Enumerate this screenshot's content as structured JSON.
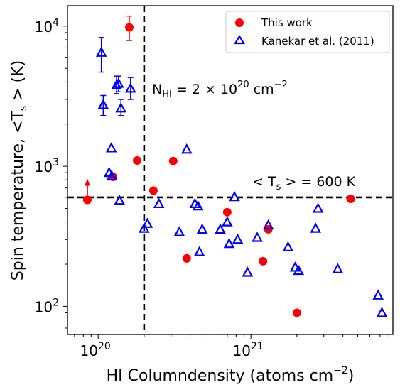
{
  "chart_data": {
    "type": "scatter",
    "xscale": "log",
    "yscale": "log",
    "xlim": [
      6.3e+19,
      8.5e+21
    ],
    "ylim": [
      63,
      14000
    ],
    "xticks": [
      {
        "value": 1e+20,
        "base": "10",
        "exp": "20"
      },
      {
        "value": 1e+21,
        "base": "10",
        "exp": "21"
      }
    ],
    "yticks": [
      {
        "value": 100,
        "base": "10",
        "exp": "2"
      },
      {
        "value": 1000,
        "base": "10",
        "exp": "3"
      },
      {
        "value": 10000,
        "base": "10",
        "exp": "4"
      }
    ],
    "xlabel": {
      "main": "HI Columndensity (atoms cm",
      "sup": "−2",
      "close": ")"
    },
    "ylabel": {
      "pre": "Spin temperature,  <T",
      "sub": "s",
      "post": " > (K)"
    },
    "colors": {
      "this_work": "#ff0000",
      "kanekar": "#0000ff"
    },
    "legend": {
      "position": "top-right",
      "entries": [
        "This work",
        "Kanekar et al. (2011)"
      ]
    },
    "vline": {
      "x": 2e+20
    },
    "hline": {
      "y": 600
    },
    "annotations": {
      "nhi": {
        "pre": "N",
        "sub": "HI",
        "mid": " = 2 × 10",
        "sup": "20",
        "post": " cm",
        "sup2": "−2"
      },
      "ts": {
        "pre": "< T",
        "sub": "s",
        "post": " > = 600 K"
      }
    },
    "series": [
      {
        "name": "This work",
        "marker": "circle",
        "points": [
          {
            "x": 1.6e+20,
            "y": 9800,
            "err": [
              7900,
              11800
            ]
          },
          {
            "x": 1.8e+20,
            "y": 1100
          },
          {
            "x": 1.25e+20,
            "y": 840
          },
          {
            "x": 3.1e+20,
            "y": 1090
          },
          {
            "x": 2.3e+20,
            "y": 670
          },
          {
            "x": 8.5e+19,
            "y": 575,
            "lower_limit": true
          },
          {
            "x": 7e+20,
            "y": 470
          },
          {
            "x": 1.3e+21,
            "y": 355
          },
          {
            "x": 3.8e+20,
            "y": 220
          },
          {
            "x": 1.2e+21,
            "y": 210
          },
          {
            "x": 2e+21,
            "y": 90
          },
          {
            "x": 4.5e+21,
            "y": 585
          }
        ]
      },
      {
        "name": "Kanekar et al. (2011)",
        "marker": "triangle",
        "points": [
          {
            "x": 1.05e+20,
            "y": 6500,
            "err": [
              4700,
              8300
            ]
          },
          {
            "x": 1.08e+20,
            "y": 2750,
            "err": [
              2300,
              3200
            ]
          },
          {
            "x": 1.32e+20,
            "y": 3800,
            "err": [
              3300,
              4400
            ]
          },
          {
            "x": 1.36e+20,
            "y": 3900,
            "err": [
              3400,
              4400
            ]
          },
          {
            "x": 1.41e+20,
            "y": 2600,
            "err": [
              2300,
              3000
            ]
          },
          {
            "x": 1.63e+20,
            "y": 3600,
            "err": [
              3000,
              4300
            ]
          },
          {
            "x": 1.22e+20,
            "y": 1350
          },
          {
            "x": 1.18e+20,
            "y": 900
          },
          {
            "x": 1.23e+20,
            "y": 850
          },
          {
            "x": 1.38e+20,
            "y": 570
          },
          {
            "x": 2e+20,
            "y": 360
          },
          {
            "x": 2.1e+20,
            "y": 390
          },
          {
            "x": 2.5e+20,
            "y": 540
          },
          {
            "x": 3.4e+20,
            "y": 340
          },
          {
            "x": 3.8e+20,
            "y": 1320
          },
          {
            "x": 4.3e+20,
            "y": 540
          },
          {
            "x": 4.5e+20,
            "y": 520
          },
          {
            "x": 4.6e+20,
            "y": 245
          },
          {
            "x": 4.8e+20,
            "y": 355
          },
          {
            "x": 6.3e+20,
            "y": 355
          },
          {
            "x": 7e+20,
            "y": 400
          },
          {
            "x": 7.2e+20,
            "y": 280
          },
          {
            "x": 7.8e+20,
            "y": 605
          },
          {
            "x": 8.2e+20,
            "y": 300
          },
          {
            "x": 9.5e+20,
            "y": 175
          },
          {
            "x": 1.1e+21,
            "y": 310
          },
          {
            "x": 1.3e+21,
            "y": 380
          },
          {
            "x": 1.75e+21,
            "y": 265
          },
          {
            "x": 1.95e+21,
            "y": 190
          },
          {
            "x": 2.05e+21,
            "y": 180
          },
          {
            "x": 2.65e+21,
            "y": 360
          },
          {
            "x": 2.75e+21,
            "y": 500
          },
          {
            "x": 3.7e+21,
            "y": 185
          },
          {
            "x": 6.8e+21,
            "y": 120
          },
          {
            "x": 7.2e+21,
            "y": 90
          }
        ]
      }
    ]
  }
}
